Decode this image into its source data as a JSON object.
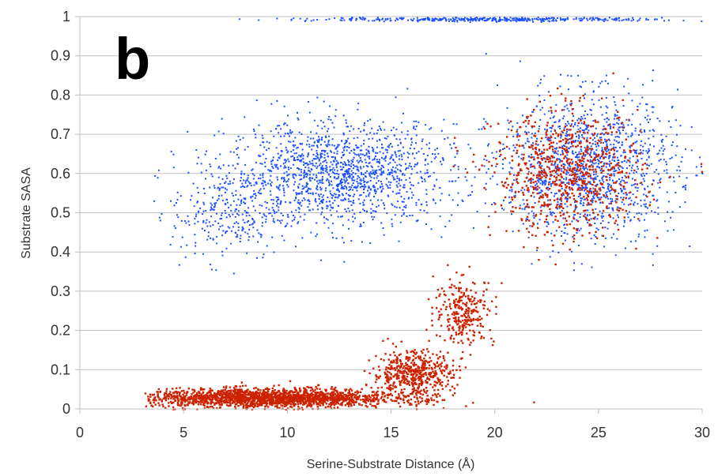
{
  "panel_label": "b",
  "colors": {
    "series_red": "#cc2200",
    "series_blue": "#1a4fff",
    "grid": "#bfbfbf",
    "text": "#333333"
  },
  "chart_data": {
    "type": "scatter",
    "title": "",
    "xlabel": "Serine-Substrate Distance (Å)",
    "ylabel": "Substrate SASA",
    "xlim": [
      0,
      30
    ],
    "ylim": [
      0,
      1
    ],
    "grid": "horizontal",
    "xticks": [
      "0",
      "5",
      "10",
      "15",
      "20",
      "25",
      "30"
    ],
    "yticks": [
      "0",
      "0.1",
      "0.2",
      "0.3",
      "0.4",
      "0.5",
      "0.6",
      "0.7",
      "0.8",
      "0.9",
      "1"
    ],
    "series": [
      {
        "color": "#1a4fff",
        "description_clusters": [
          {
            "x_center": 12.5,
            "y_center": 0.6,
            "x_spread": 4.5,
            "y_spread": 0.11,
            "share": 0.42
          },
          {
            "x_center": 24.5,
            "y_center": 0.62,
            "x_spread": 3.5,
            "y_spread": 0.15,
            "share": 0.38
          },
          {
            "x_center": 20,
            "y_center": 0.995,
            "x_spread": 7,
            "y_spread": 0.005,
            "share": 0.12
          },
          {
            "x_center": 7,
            "y_center": 0.5,
            "x_spread": 2.2,
            "y_spread": 0.1,
            "share": 0.08
          }
        ]
      },
      {
        "color": "#cc2200",
        "description_clusters": [
          {
            "x_center": 9,
            "y_center": 0.03,
            "x_spread": 5,
            "y_spread": 0.02,
            "share": 0.55
          },
          {
            "x_center": 16,
            "y_center": 0.09,
            "x_spread": 1.6,
            "y_spread": 0.05,
            "share": 0.15
          },
          {
            "x_center": 18.5,
            "y_center": 0.25,
            "x_spread": 1.2,
            "y_spread": 0.07,
            "share": 0.08
          },
          {
            "x_center": 23.5,
            "y_center": 0.6,
            "x_spread": 3,
            "y_spread": 0.13,
            "share": 0.22
          }
        ]
      }
    ]
  }
}
